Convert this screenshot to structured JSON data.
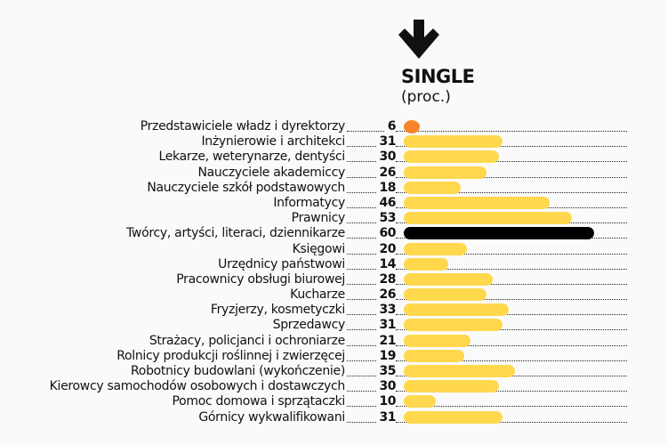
{
  "header": {
    "arrow_icon": "down-arrow-icon",
    "title": "SINGLE",
    "subtitle": "(proc.)"
  },
  "colors": {
    "background": "#fafafa",
    "default_bar": "#ffd84d",
    "lowest_bar": "#f7842a",
    "highest_bar": "#000000"
  },
  "rows": [
    {
      "label": "Przedstawiciele władz i dyrektorzy",
      "value": "6"
    },
    {
      "label": "Inżynierowie i architekci",
      "value": "31"
    },
    {
      "label": "Lekarze, weterynarze, dentyści",
      "value": "30"
    },
    {
      "label": "Nauczyciele akademiccy",
      "value": "26"
    },
    {
      "label": "Nauczyciele szkół podstawowych",
      "value": "18"
    },
    {
      "label": "Informatycy",
      "value": "46"
    },
    {
      "label": "Prawnicy",
      "value": "53"
    },
    {
      "label": "Twórcy, artyści, literaci, dziennikarze",
      "value": "60"
    },
    {
      "label": "Księgowi",
      "value": "20"
    },
    {
      "label": "Urzędnicy państwowi",
      "value": "14"
    },
    {
      "label": "Pracownicy obsługi biurowej",
      "value": "28"
    },
    {
      "label": "Kucharze",
      "value": "26"
    },
    {
      "label": "Fryzjerzy, kosmetyczki",
      "value": "33"
    },
    {
      "label": "Sprzedawcy",
      "value": "31"
    },
    {
      "label": "Strażacy, policjanci i ochroniarze",
      "value": "21"
    },
    {
      "label": "Rolnicy produkcji roślinnej i zwierzęcej",
      "value": "19"
    },
    {
      "label": "Robotnicy budowlani (wykończenie)",
      "value": "35"
    },
    {
      "label": "Kierowcy samochodów osobowych i dostawczych",
      "value": "30"
    },
    {
      "label": "Pomoc domowa i sprzątaczki",
      "value": "10"
    },
    {
      "label": "Górnicy wykwalifikowani",
      "value": "31"
    }
  ],
  "chart_data": {
    "type": "bar",
    "orientation": "horizontal",
    "title": "SINGLE",
    "subtitle": "(proc.)",
    "xlabel": "",
    "ylabel": "",
    "categories": [
      "Przedstawiciele władz i dyrektorzy",
      "Inżynierowie i architekci",
      "Lekarze, weterynarze, dentyści",
      "Nauczyciele akademiccy",
      "Nauczyciele szkół podstawowych",
      "Informatycy",
      "Prawnicy",
      "Twórcy, artyści, literaci, dziennikarze",
      "Księgowi",
      "Urzędnicy państwowi",
      "Pracownicy obsługi biurowej",
      "Kucharze",
      "Fryzjerzy, kosmetyczki",
      "Sprzedawcy",
      "Strażacy, policjanci i ochroniarze",
      "Rolnicy produkcji roślinnej i zwierzęcej",
      "Robotnicy budowlani (wykończenie)",
      "Kierowcy samochodów osobowych i dostawczych",
      "Pomoc domowa i sprzątaczki",
      "Górnicy wykwalifikowani"
    ],
    "values": [
      6,
      31,
      30,
      26,
      18,
      46,
      53,
      60,
      20,
      14,
      28,
      26,
      33,
      31,
      21,
      19,
      35,
      30,
      10,
      31
    ],
    "highlight": {
      "min": "Przedstawiciele władz i dyrektorzy",
      "max": "Twórcy, artyści, literaci, dziennikarze"
    },
    "grid": false,
    "legend": null,
    "xlim": [
      0,
      60
    ]
  }
}
